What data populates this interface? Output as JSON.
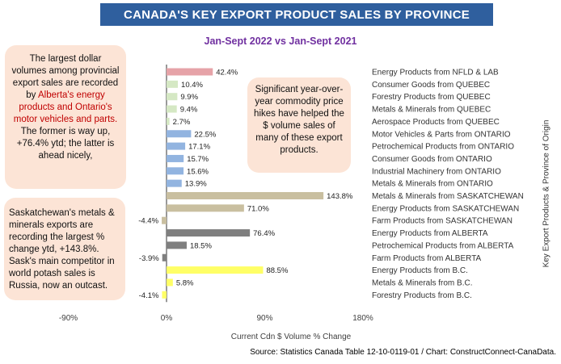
{
  "title": "CANADA'S KEY EXPORT PRODUCT SALES BY PROVINCE",
  "subtitle": "Jan-Sept 2022 vs Jan-Sept 2021",
  "notes": {
    "left_top": {
      "a": "The largest dollar volumes among provincial export sales are recorded by ",
      "b": "Alberta's energy products and Ontario's motor vehicles and parts.",
      "c": " The former is way up, +76.4% ytd; the latter is ahead nicely,"
    },
    "left_bottom": "Saskatchewan's metals & minerals exports are recording the largest % change ytd, +143.8%. Sask's main competitor in world potash sales is Russia, now an outcast.",
    "center": "Significant year-over-year commodity price hikes have helped the $ volume sales of many of these export products."
  },
  "source": "Source: Statistics Canada Table 12-10-0119-01 / Chart: ConstructConnect-CanaData.",
  "chart_data": {
    "type": "bar",
    "orientation": "horizontal",
    "title": "CANADA'S KEY EXPORT PRODUCT SALES BY PROVINCE",
    "subtitle": "Jan-Sept 2022 vs Jan-Sept 2021",
    "xlabel": "Current Cdn $ Volume % Change",
    "ylabel": "Key Export Products & Province of Origin",
    "xlim": [
      -90,
      180
    ],
    "xticks": [
      -90,
      0,
      90,
      180
    ],
    "xtick_labels": [
      "-90%",
      "0%",
      "90%",
      "180%"
    ],
    "grid": false,
    "categories": [
      "Energy Products from NFLD & LAB",
      "Consumer Goods from QUEBEC",
      "Forestry Products from QUEBEC",
      "Metals & Minerals from QUEBEC",
      "Aerospace Products from QUEBEC",
      "Motor Vehicles & Parts from ONTARIO",
      "Petrochemical Products from ONTARIO",
      "Consumer Goods from ONTARIO",
      "Industrial Machinery from ONTARIO",
      "Metals & Minerals from ONTARIO",
      "Metals & Minerals from SASKATCHEWAN",
      "Energy Products from SASKATCHEWAN",
      "Farm Products from SASKATCHEWAN",
      "Energy Products from ALBERTA",
      "Petrochemical Products from ALBERTA",
      "Farm Products from ALBERTA",
      "Energy Products from B.C.",
      "Metals & Minerals from B.C.",
      "Forestry Products from B.C."
    ],
    "values": [
      42.4,
      10.4,
      9.9,
      9.4,
      2.7,
      22.5,
      17.1,
      15.7,
      15.6,
      13.9,
      143.8,
      71.0,
      -4.4,
      76.4,
      18.5,
      -3.9,
      88.5,
      5.8,
      -4.1
    ],
    "value_labels": [
      "42.4%",
      "10.4%",
      "9.9%",
      "9.4%",
      "2.7%",
      "22.5%",
      "17.1%",
      "15.7%",
      "15.6%",
      "13.9%",
      "143.8%",
      "71.0%",
      "-4.4%",
      "76.4%",
      "18.5%",
      "-3.9%",
      "88.5%",
      "5.8%",
      "-4.1%"
    ],
    "colors": [
      "#e6a3a8",
      "#d5e8c4",
      "#d5e8c4",
      "#d5e8c4",
      "#d5e8c4",
      "#92b4e0",
      "#92b4e0",
      "#92b4e0",
      "#92b4e0",
      "#92b4e0",
      "#c9bfa0",
      "#c9bfa0",
      "#c9bfa0",
      "#7f7f7f",
      "#7f7f7f",
      "#7f7f7f",
      "#ffff66",
      "#ffff66",
      "#ffff66"
    ]
  }
}
